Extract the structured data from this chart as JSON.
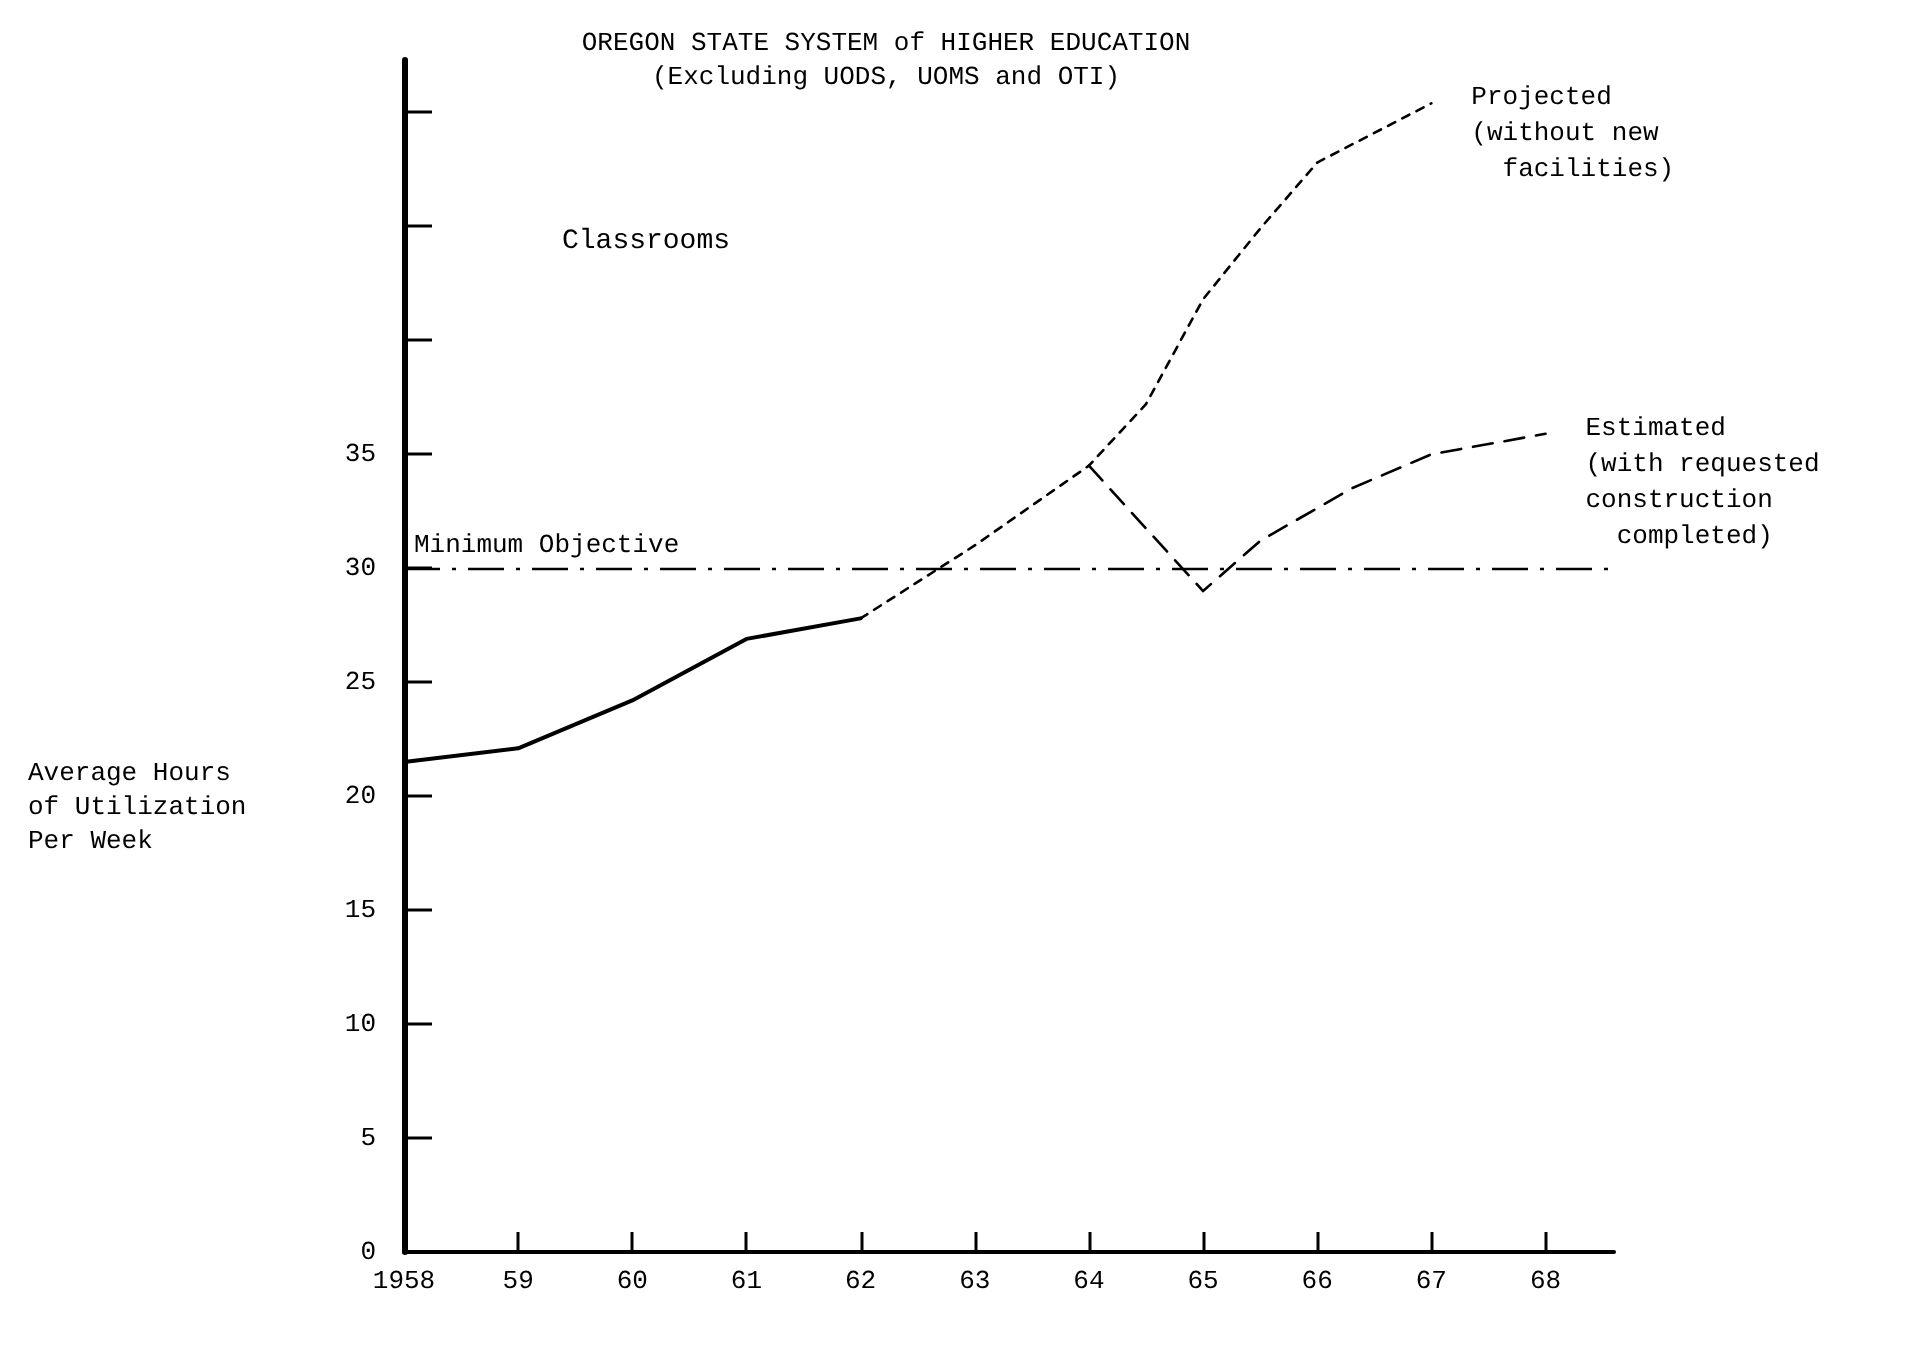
{
  "chart_data": {
    "type": "line",
    "title": "OREGON STATE SYSTEM of HIGHER EDUCATION",
    "subtitle": "(Excluding UODS, UOMS and OTI)",
    "ylabel": "Average Hours\nof Utilization\nPer Week",
    "annotations": [
      "Classrooms"
    ],
    "xlim": [
      1958,
      1968.6
    ],
    "xticks": [
      {
        "value": 1958,
        "label": "1958"
      },
      {
        "value": 1959,
        "label": "59"
      },
      {
        "value": 1960,
        "label": "60"
      },
      {
        "value": 1961,
        "label": "61"
      },
      {
        "value": 1962,
        "label": "62"
      },
      {
        "value": 1963,
        "label": "63"
      },
      {
        "value": 1964,
        "label": "64"
      },
      {
        "value": 1965,
        "label": "65"
      },
      {
        "value": 1966,
        "label": "66"
      },
      {
        "value": 1967,
        "label": "67"
      },
      {
        "value": 1968,
        "label": "68"
      }
    ],
    "ylim": [
      0,
      52.3
    ],
    "yticks": [
      0,
      5,
      10,
      15,
      20,
      25,
      30,
      35,
      {
        "value": 40,
        "label": null
      },
      {
        "value": 45,
        "label": null
      },
      {
        "value": 50,
        "label": null
      }
    ],
    "grid": false,
    "legend": false,
    "marker": "none",
    "ref_lines": [
      {
        "axis": "y",
        "value": 30,
        "label": "Minimum Objective",
        "color": "#000000",
        "line_style": "dashdot"
      }
    ],
    "series": [
      {
        "color": "#000000",
        "line_style": "solid",
        "x": [
          1958,
          1959,
          1960,
          1961,
          1962
        ],
        "values": [
          21.5,
          22.1,
          24.2,
          26.9,
          27.8
        ]
      },
      {
        "name": "Projected\n(without new\n  facilities)",
        "color": "#000000",
        "line_style": "dotted",
        "x": [
          1962,
          1963,
          1964,
          1964.5,
          1965,
          1965.5,
          1966,
          1966.5,
          1967
        ],
        "values": [
          27.8,
          31,
          34.5,
          37.2,
          41.8,
          44.9,
          47.8,
          49.1,
          50.4
        ]
      },
      {
        "name": "Estimated\n(with requested\nconstruction\n  completed)",
        "color": "#000000",
        "line_style": "dashed",
        "x": [
          1964,
          1965,
          1965.5,
          1966.3,
          1967,
          1968
        ],
        "values": [
          34.5,
          29,
          31.2,
          33.5,
          35,
          35.9
        ]
      }
    ]
  }
}
